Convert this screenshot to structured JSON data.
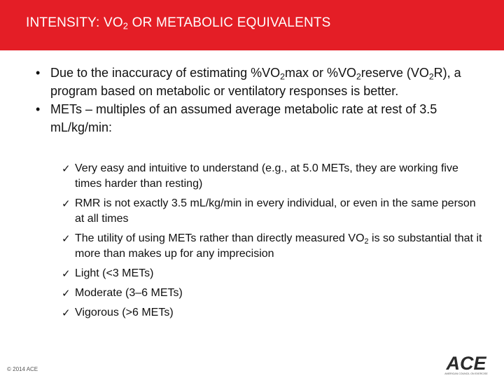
{
  "header": {
    "title_prefix": "INTENSITY: VO",
    "title_sub": "2",
    "title_suffix": " OR METABOLIC EQUIVALENTS",
    "bg_color": "#e41e26"
  },
  "bullets": [
    {
      "p1": "Due to the inaccuracy of estimating %VO",
      "s1": "2",
      "p2": "max or %VO",
      "s2": "2",
      "p3": "reserve (VO",
      "s3": "2",
      "p4": "R), a program based on metabolic or ventilatory responses is better."
    },
    {
      "text": "METs – multiples of an assumed average metabolic rate at rest of 3.5 mL/kg/min:"
    }
  ],
  "checks": [
    {
      "text": "Very easy and intuitive to understand (e.g., at 5.0 METs, they are working five times harder than resting)"
    },
    {
      "text": "RMR is not exactly 3.5 mL/kg/min in every individual, or even in the same person at all times"
    },
    {
      "p1": "The utility of using METs rather than directly measured VO",
      "s1": "2",
      "p2": " is so substantial that it more than makes up for any imprecision"
    },
    {
      "text": "Light (<3 METs)"
    },
    {
      "text": "Moderate (3–6 METs)"
    },
    {
      "text": "Vigorous (>6 METs)"
    }
  ],
  "bullet_icon": "bullet-dot",
  "check_icon": "checkmark-icon",
  "footer": {
    "copyright": "© 2014 ACE",
    "logo_text": "ACE",
    "logo_tagline": "AMERICAN COUNCIL ON EXERCISE"
  }
}
